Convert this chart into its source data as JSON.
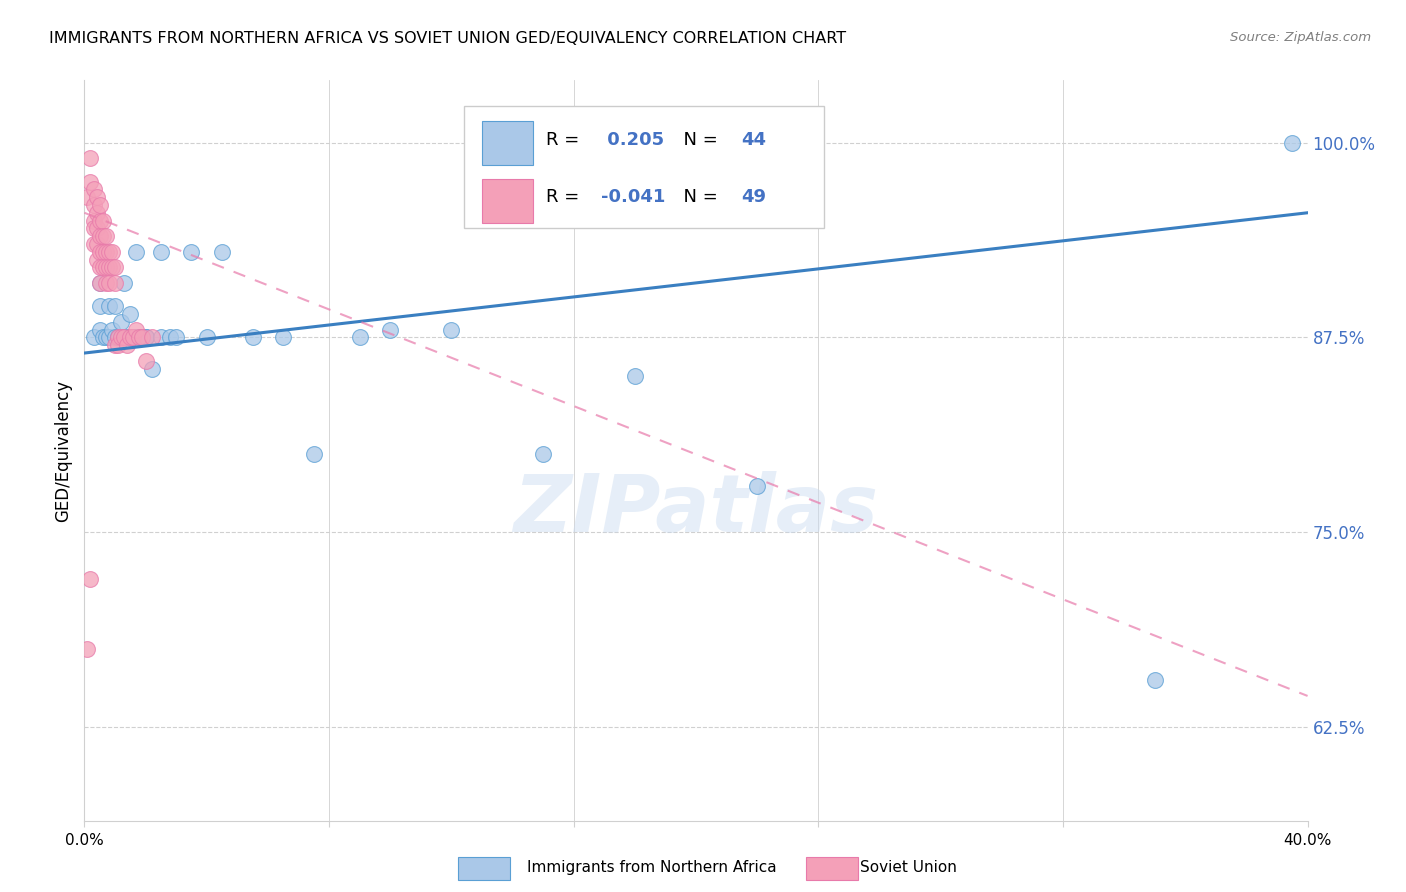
{
  "title": "IMMIGRANTS FROM NORTHERN AFRICA VS SOVIET UNION GED/EQUIVALENCY CORRELATION CHART",
  "source": "Source: ZipAtlas.com",
  "ylabel": "GED/Equivalency",
  "y_ticks": [
    0.625,
    0.75,
    0.875,
    1.0
  ],
  "y_tick_labels": [
    "62.5%",
    "75.0%",
    "87.5%",
    "100.0%"
  ],
  "xlim": [
    0.0,
    0.4
  ],
  "ylim": [
    0.565,
    1.04
  ],
  "blue_R": 0.205,
  "blue_N": 44,
  "pink_R": -0.041,
  "pink_N": 49,
  "blue_color": "#aac8e8",
  "pink_color": "#f4a0b8",
  "blue_edge_color": "#5a9fd4",
  "pink_edge_color": "#e87aaa",
  "blue_line_color": "#3a7fc1",
  "pink_line_color": "#e87aaa",
  "watermark": "ZIPatlas",
  "blue_scatter_x": [
    0.003,
    0.005,
    0.005,
    0.005,
    0.006,
    0.007,
    0.008,
    0.008,
    0.009,
    0.01,
    0.01,
    0.011,
    0.012,
    0.013,
    0.013,
    0.014,
    0.015,
    0.015,
    0.016,
    0.016,
    0.017,
    0.018,
    0.019,
    0.02,
    0.02,
    0.022,
    0.025,
    0.025,
    0.028,
    0.03,
    0.035,
    0.04,
    0.045,
    0.055,
    0.065,
    0.075,
    0.09,
    0.1,
    0.12,
    0.15,
    0.18,
    0.22,
    0.35,
    0.395
  ],
  "blue_scatter_y": [
    0.875,
    0.91,
    0.895,
    0.88,
    0.875,
    0.875,
    0.895,
    0.875,
    0.88,
    0.895,
    0.875,
    0.875,
    0.885,
    0.875,
    0.91,
    0.875,
    0.875,
    0.89,
    0.875,
    0.875,
    0.93,
    0.875,
    0.875,
    0.875,
    0.875,
    0.855,
    0.875,
    0.93,
    0.875,
    0.875,
    0.93,
    0.875,
    0.93,
    0.875,
    0.875,
    0.8,
    0.875,
    0.88,
    0.88,
    0.8,
    0.85,
    0.78,
    0.655,
    1.0
  ],
  "pink_scatter_x": [
    0.001,
    0.002,
    0.002,
    0.003,
    0.003,
    0.003,
    0.003,
    0.003,
    0.004,
    0.004,
    0.004,
    0.004,
    0.004,
    0.005,
    0.005,
    0.005,
    0.005,
    0.005,
    0.005,
    0.006,
    0.006,
    0.006,
    0.006,
    0.007,
    0.007,
    0.007,
    0.007,
    0.008,
    0.008,
    0.008,
    0.009,
    0.009,
    0.01,
    0.01,
    0.01,
    0.011,
    0.011,
    0.012,
    0.013,
    0.014,
    0.015,
    0.016,
    0.017,
    0.018,
    0.019,
    0.02,
    0.022,
    0.002,
    0.001
  ],
  "pink_scatter_y": [
    0.965,
    0.99,
    0.975,
    0.97,
    0.96,
    0.95,
    0.945,
    0.935,
    0.965,
    0.955,
    0.945,
    0.935,
    0.925,
    0.96,
    0.95,
    0.94,
    0.93,
    0.92,
    0.91,
    0.95,
    0.94,
    0.93,
    0.92,
    0.94,
    0.93,
    0.92,
    0.91,
    0.93,
    0.92,
    0.91,
    0.93,
    0.92,
    0.92,
    0.91,
    0.87,
    0.875,
    0.87,
    0.875,
    0.875,
    0.87,
    0.875,
    0.875,
    0.88,
    0.875,
    0.875,
    0.86,
    0.875,
    0.72,
    0.675
  ],
  "blue_trend_x": [
    0.0,
    0.4
  ],
  "blue_trend_y": [
    0.865,
    0.955
  ],
  "pink_trend_x": [
    0.0,
    0.4
  ],
  "pink_trend_y": [
    0.955,
    0.645
  ]
}
